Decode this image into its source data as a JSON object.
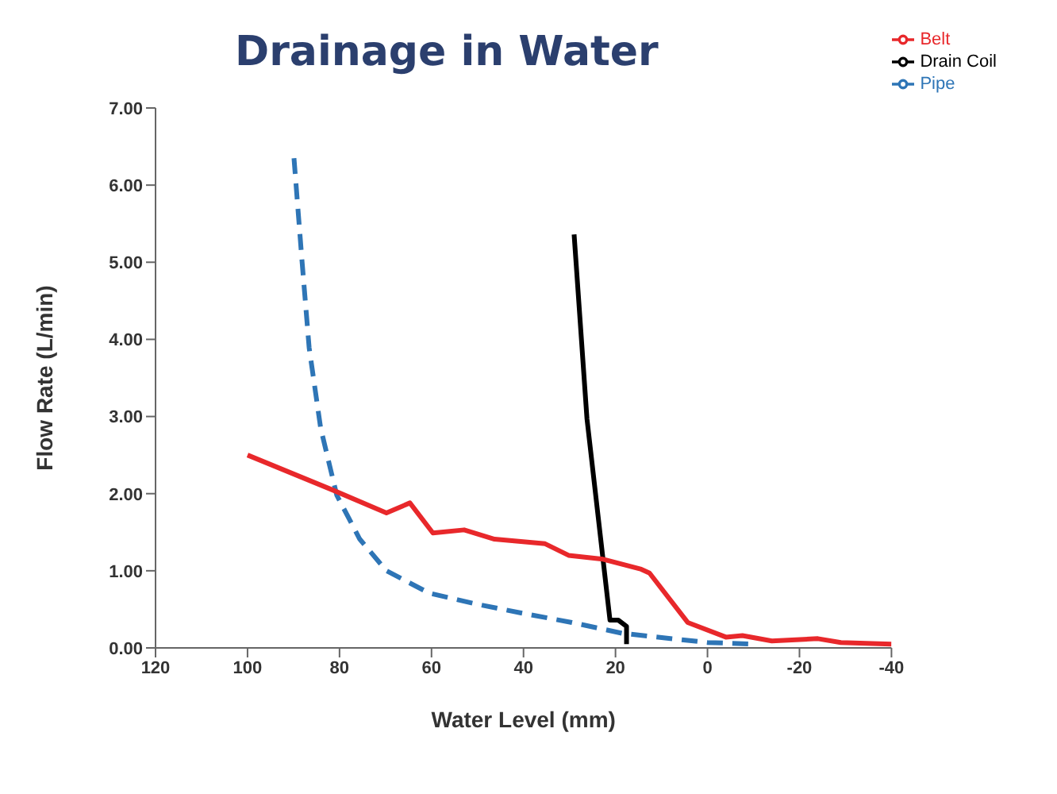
{
  "chart_data": {
    "type": "line",
    "title": "Drainage in Water",
    "xlabel": "Water Level (mm)",
    "ylabel": "Flow Rate (L/min)",
    "xlim": [
      120,
      -40
    ],
    "xticks": [
      120,
      100,
      80,
      60,
      40,
      20,
      0,
      -20,
      -40
    ],
    "ylim": [
      0,
      7
    ],
    "yticks": [
      {
        "value": 0,
        "label": "0.00"
      },
      {
        "value": 1,
        "label": "1.00"
      },
      {
        "value": 2,
        "label": "2.00"
      },
      {
        "value": 3,
        "label": "3.00"
      },
      {
        "value": 4,
        "label": "4.00"
      },
      {
        "value": 5,
        "label": "5.00"
      },
      {
        "value": 6,
        "label": "6.00"
      },
      {
        "value": 7,
        "label": "7.00"
      }
    ],
    "grid": false,
    "legend": "top right",
    "marker": "none",
    "series": [
      {
        "name": "Drain Coil",
        "color": "#000000",
        "line_style": "solid",
        "x": [
          29,
          26.2,
          21.2,
          19.4,
          17.6,
          17.6
        ],
        "values": [
          5.36,
          2.97,
          0.36,
          0.36,
          0.28,
          0.05
        ]
      },
      {
        "name": "Pipe",
        "color": "#2e75b6",
        "line_style": "dashed",
        "x": [
          89.9,
          88.2,
          86.6,
          84.1,
          80.6,
          75.6,
          69.8,
          60.5,
          50.4,
          40.3,
          29.5,
          18.6,
          0,
          -10
        ],
        "values": [
          6.35,
          5.05,
          3.89,
          2.85,
          1.98,
          1.41,
          1.0,
          0.71,
          0.57,
          0.45,
          0.33,
          0.19,
          0.07,
          0.05
        ]
      },
      {
        "name": "Belt",
        "color": "#e8282b",
        "line_style": "solid",
        "x": [
          100,
          81.6,
          69.8,
          64.7,
          59.7,
          52.9,
          46.3,
          35.3,
          30.2,
          22.7,
          14.4,
          12.6,
          4.3,
          -4,
          -7.6,
          -14,
          -24,
          -29,
          -40
        ],
        "values": [
          2.5,
          2.05,
          1.75,
          1.88,
          1.49,
          1.53,
          1.41,
          1.35,
          1.2,
          1.15,
          1.02,
          0.97,
          0.33,
          0.14,
          0.16,
          0.09,
          0.12,
          0.07,
          0.05
        ]
      }
    ]
  }
}
